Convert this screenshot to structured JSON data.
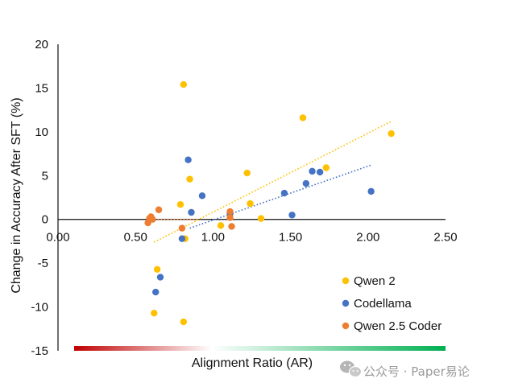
{
  "chart_data": {
    "type": "scatter",
    "title": "",
    "xlabel": "Alignment Ratio (AR)",
    "ylabel": "Change in Accuracy After SFT (%)",
    "xlim": [
      0,
      2.5
    ],
    "ylim": [
      -15,
      20
    ],
    "x_ticks": [
      "0.00",
      "0.50",
      "1.00",
      "1.50",
      "2.00",
      "2.50"
    ],
    "y_ticks": [
      "20",
      "15",
      "10",
      "5",
      "0",
      "-5",
      "-10",
      "-15"
    ],
    "grid": false,
    "legend_position": "bottom-right",
    "series": [
      {
        "name": "Qwen 2",
        "color": "#FFC000",
        "points": [
          [
            0.81,
            15.4
          ],
          [
            0.85,
            4.6
          ],
          [
            0.79,
            1.7
          ],
          [
            0.82,
            -2.2
          ],
          [
            0.62,
            -10.7
          ],
          [
            0.64,
            -5.7
          ],
          [
            0.81,
            -11.7
          ],
          [
            0.6,
            0.3
          ],
          [
            1.05,
            -0.7
          ],
          [
            1.11,
            0.5
          ],
          [
            1.22,
            5.3
          ],
          [
            1.24,
            1.8
          ],
          [
            1.31,
            0.1
          ],
          [
            1.58,
            11.6
          ],
          [
            1.73,
            5.9
          ],
          [
            2.15,
            9.8
          ]
        ],
        "trend": [
          [
            0.62,
            -2.6
          ],
          [
            2.15,
            11.2
          ]
        ]
      },
      {
        "name": "Codellama",
        "color": "#4472C4",
        "points": [
          [
            0.84,
            6.8
          ],
          [
            0.93,
            2.7
          ],
          [
            0.86,
            0.8
          ],
          [
            0.8,
            -2.2
          ],
          [
            0.63,
            -8.3
          ],
          [
            0.66,
            -6.6
          ],
          [
            1.11,
            0.7
          ],
          [
            1.46,
            3.0
          ],
          [
            1.51,
            0.5
          ],
          [
            1.6,
            4.1
          ],
          [
            1.64,
            5.5
          ],
          [
            1.69,
            5.4
          ],
          [
            2.02,
            3.2
          ]
        ],
        "trend": [
          [
            0.85,
            -1.0
          ],
          [
            2.02,
            6.2
          ]
        ]
      },
      {
        "name": "Qwen 2.5 Coder",
        "color": "#ED7D31",
        "points": [
          [
            0.58,
            -0.4
          ],
          [
            0.59,
            0.1
          ],
          [
            0.6,
            0.3
          ],
          [
            0.61,
            0.0
          ],
          [
            0.65,
            1.1
          ],
          [
            0.8,
            -1.0
          ],
          [
            1.11,
            0.9
          ],
          [
            1.11,
            0.2
          ],
          [
            1.12,
            -0.8
          ]
        ],
        "trend": [
          [
            0.58,
            0.0
          ],
          [
            0.9,
            0.0
          ]
        ]
      }
    ]
  },
  "gradient_colors": [
    "#C00000",
    "#FFFFFF",
    "#00B050"
  ],
  "watermark": {
    "icon": "wechat-icon",
    "text": "公众号 · Paper易论"
  }
}
